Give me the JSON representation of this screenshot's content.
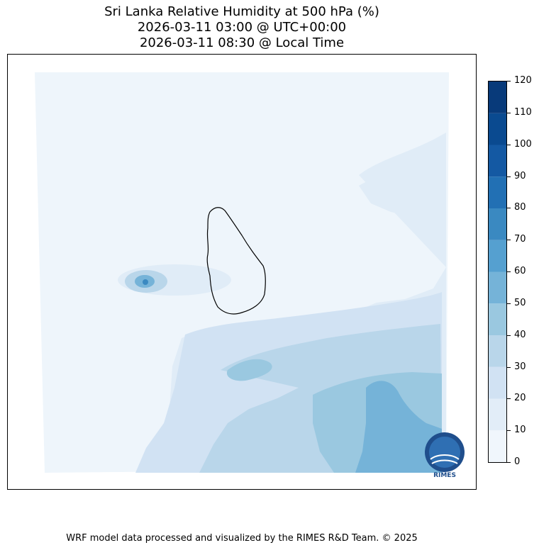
{
  "title": {
    "line1": "Sri Lanka Relative Humidity at 500 hPa (%)",
    "line2": "2026-03-11 03:00 @ UTC+00:00",
    "line3": "2026-03-11 08:30 @ Local Time"
  },
  "colorbar": {
    "ticks": [
      "0",
      "10",
      "20",
      "30",
      "40",
      "50",
      "60",
      "70",
      "80",
      "90",
      "100",
      "110",
      "120"
    ],
    "colors": [
      "#f0f6fc",
      "#e2edf8",
      "#d1e2f3",
      "#b9d6ea",
      "#9ac8e0",
      "#75b3d8",
      "#55a0d0",
      "#3a89c1",
      "#2270b4",
      "#1459a3",
      "#0a4a90",
      "#083a7a"
    ]
  },
  "map": {
    "background_color": "#ffffff",
    "outline_color": "#000000"
  },
  "logo": {
    "text": "RIMES"
  },
  "footer": {
    "credit": "WRF model data processed and visualized by the RIMES R&D Team. © 2025"
  }
}
